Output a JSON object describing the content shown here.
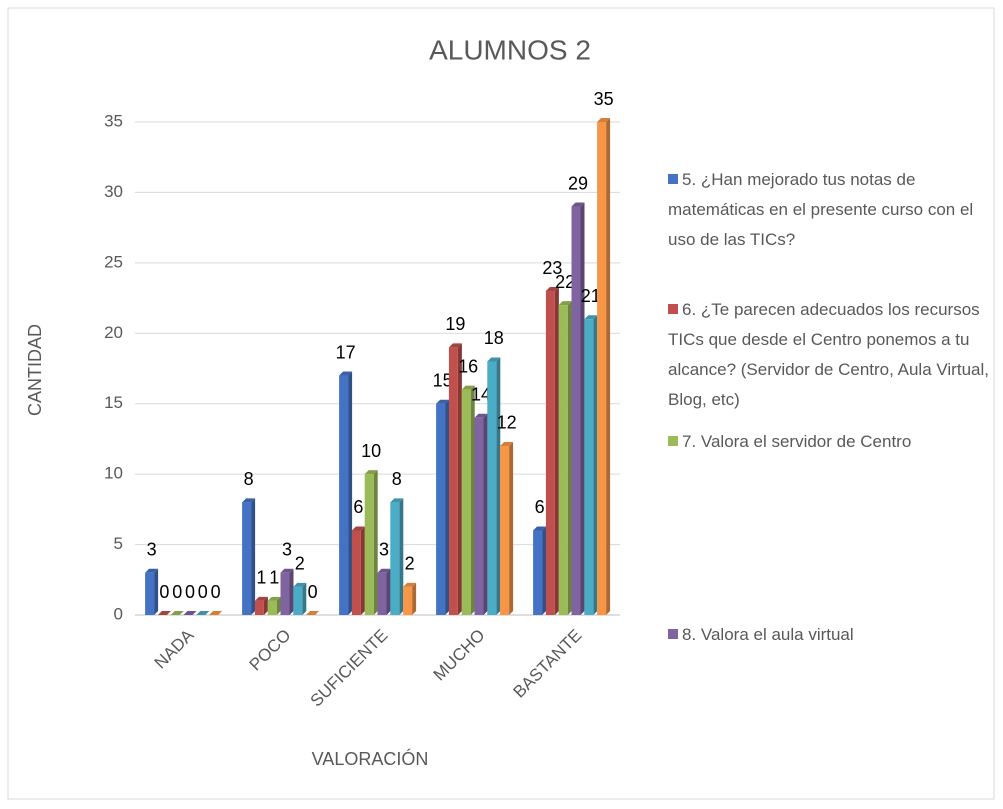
{
  "chart_data": {
    "type": "bar",
    "title": "ALUMNOS 2",
    "x_label": "VALORACIÓN",
    "y_label": "CANTIDAD",
    "categories": [
      "NADA",
      "POCO",
      "SUFICIENTE",
      "MUCHO",
      "BASTANTE"
    ],
    "series": [
      {
        "name": "5.  ¿Han mejorado tus notas de matemáticas en el presente curso con el uso de las TICs?",
        "color": "#4472c4",
        "values": [
          3,
          8,
          17,
          15,
          6
        ]
      },
      {
        "name": "6.  ¿Te parecen adecuados los recursos TICs que desde el Centro ponemos a tu alcance? (Servidor de Centro, Aula Virtual, Blog, etc)",
        "color": "#c0504d",
        "values": [
          0,
          1,
          6,
          19,
          23
        ]
      },
      {
        "name": "7.  Valora el servidor de Centro",
        "color": "#9bbb59",
        "values": [
          0,
          1,
          10,
          16,
          22
        ]
      },
      {
        "name": "8.  Valora el aula virtual",
        "color": "#8064a2",
        "values": [
          0,
          3,
          3,
          14,
          29
        ]
      },
      {
        "color": "#4bacc6",
        "values": [
          0,
          2,
          8,
          18,
          21
        ]
      },
      {
        "color": "#f79646",
        "values": [
          0,
          0,
          2,
          12,
          35
        ]
      }
    ],
    "ylim": [
      0,
      35
    ],
    "yticks": [
      0,
      5,
      10,
      15,
      20,
      25,
      30,
      35
    ],
    "grid": true
  }
}
